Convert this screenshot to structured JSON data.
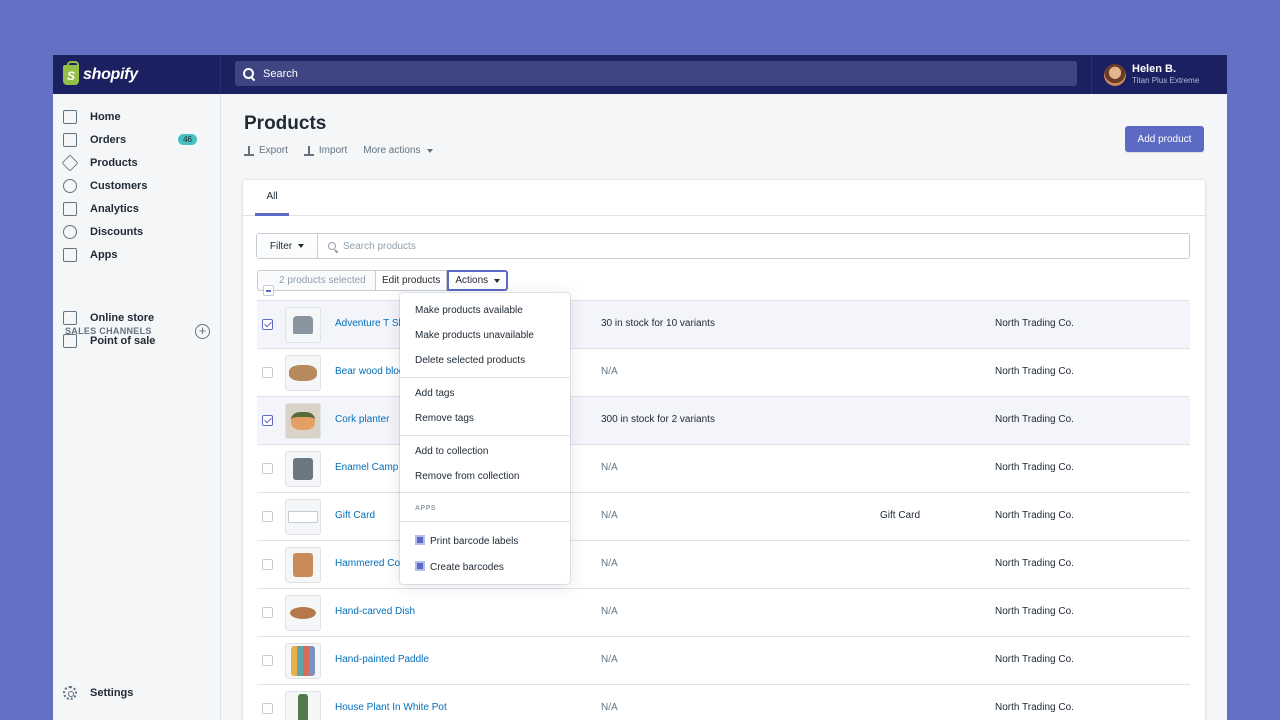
{
  "topbar": {
    "logo_text": "shopify",
    "logo_letter": "S",
    "search_placeholder": "Search",
    "user_name": "Helen B.",
    "user_plan": "Titan Plus Extreme"
  },
  "sidebar": {
    "items": [
      {
        "label": "Home",
        "icon": "home-icon"
      },
      {
        "label": "Orders",
        "icon": "orders-icon",
        "badge": "46"
      },
      {
        "label": "Products",
        "icon": "tag-icon"
      },
      {
        "label": "Customers",
        "icon": "person-icon"
      },
      {
        "label": "Analytics",
        "icon": "bar-chart-icon"
      },
      {
        "label": "Discounts",
        "icon": "discount-icon"
      },
      {
        "label": "Apps",
        "icon": "apps-icon"
      }
    ],
    "sales_channels_heading": "SALES CHANNELS",
    "channels": [
      {
        "label": "Online store",
        "icon": "store-icon"
      },
      {
        "label": "Point of sale",
        "icon": "pos-icon"
      }
    ],
    "settings_label": "Settings"
  },
  "page": {
    "title": "Products",
    "export_label": "Export",
    "import_label": "Import",
    "more_actions_label": "More actions",
    "add_product_label": "Add product"
  },
  "tabs": {
    "all": "All"
  },
  "filter": {
    "filter_label": "Filter",
    "search_placeholder": "Search products"
  },
  "bulk": {
    "selected_label": "2 products selected",
    "edit_label": "Edit products",
    "actions_label": "Actions"
  },
  "actions_menu": {
    "make_available": "Make products available",
    "make_unavailable": "Make products unavailable",
    "delete_selected": "Delete selected products",
    "add_tags": "Add tags",
    "remove_tags": "Remove tags",
    "add_to_collection": "Add to collection",
    "remove_from_collection": "Remove from collection",
    "apps_heading": "APPS",
    "print_barcode": "Print barcode labels",
    "create_barcodes": "Create barcodes"
  },
  "products": [
    {
      "name": "Adventure T Shirt",
      "inventory": "30 in stock for 10 variants",
      "type": "",
      "vendor": "North Trading Co.",
      "selected": true
    },
    {
      "name": "Bear wood block",
      "inventory": "N/A",
      "type": "",
      "vendor": "North Trading Co.",
      "selected": false
    },
    {
      "name": "Cork planter",
      "inventory": "300 in stock for 2 variants",
      "type": "",
      "vendor": "North Trading Co.",
      "selected": true
    },
    {
      "name": "Enamel Camp Mug",
      "inventory": "N/A",
      "type": "",
      "vendor": "North Trading Co.",
      "selected": false
    },
    {
      "name": "Gift Card",
      "inventory": "N/A",
      "type": "Gift Card",
      "vendor": "North Trading Co.",
      "selected": false
    },
    {
      "name": "Hammered Copper Mug",
      "inventory": "N/A",
      "type": "",
      "vendor": "North Trading Co.",
      "selected": false
    },
    {
      "name": "Hand-carved Dish",
      "inventory": "N/A",
      "type": "",
      "vendor": "North Trading Co.",
      "selected": false
    },
    {
      "name": "Hand-painted Paddle",
      "inventory": "N/A",
      "type": "",
      "vendor": "North Trading Co.",
      "selected": false
    },
    {
      "name": "House Plant In White Pot",
      "inventory": "N/A",
      "type": "",
      "vendor": "North Trading Co.",
      "selected": false
    }
  ],
  "colors": {
    "accent": "#5c6ac4",
    "topbar": "#1b2160",
    "background": "#6470c4",
    "link": "#006fbb"
  }
}
